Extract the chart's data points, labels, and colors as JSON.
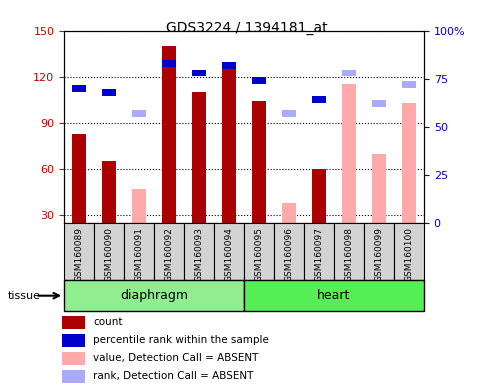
{
  "title": "GDS3224 / 1394181_at",
  "samples": [
    "GSM160089",
    "GSM160090",
    "GSM160091",
    "GSM160092",
    "GSM160093",
    "GSM160094",
    "GSM160095",
    "GSM160096",
    "GSM160097",
    "GSM160098",
    "GSM160099",
    "GSM160100"
  ],
  "tissue_groups": [
    {
      "label": "diaphragm",
      "start": 0,
      "end": 6
    },
    {
      "label": "heart",
      "start": 6,
      "end": 12
    }
  ],
  "count_values": {
    "GSM160089": 83,
    "GSM160090": 65,
    "GSM160091": null,
    "GSM160092": 140,
    "GSM160093": 110,
    "GSM160094": 128,
    "GSM160095": 104,
    "GSM160096": null,
    "GSM160097": 60,
    "GSM160098": null,
    "GSM160099": null,
    "GSM160100": null
  },
  "rank_values": {
    "GSM160089": 70,
    "GSM160090": 68,
    "GSM160091": null,
    "GSM160092": 83,
    "GSM160093": 78,
    "GSM160094": 82,
    "GSM160095": 74,
    "GSM160096": null,
    "GSM160097": 64,
    "GSM160098": null,
    "GSM160099": null,
    "GSM160100": null
  },
  "absent_value_values": {
    "GSM160091": 47,
    "GSM160096": 38,
    "GSM160098": 115,
    "GSM160099": 70,
    "GSM160100": 103
  },
  "absent_rank_values": {
    "GSM160091": 57,
    "GSM160096": 57,
    "GSM160098": 78,
    "GSM160099": 62,
    "GSM160100": 72
  },
  "ylim_left": [
    25,
    150
  ],
  "yticks_left": [
    30,
    60,
    90,
    120,
    150
  ],
  "ylim_right": [
    0,
    100
  ],
  "yticks_right": [
    0,
    25,
    50,
    75,
    100
  ],
  "color_count": "#aa0000",
  "color_rank": "#0000cc",
  "color_absent_value": "#ffaaaa",
  "color_absent_rank": "#aaaaff",
  "tick_label_color_left": "#cc0000",
  "tick_label_color_right": "#0000cc",
  "tissue_colors": [
    "#90ee90",
    "#55ee55"
  ],
  "legend_items": [
    [
      "#aa0000",
      "count"
    ],
    [
      "#0000cc",
      "percentile rank within the sample"
    ],
    [
      "#ffaaaa",
      "value, Detection Call = ABSENT"
    ],
    [
      "#aaaaff",
      "rank, Detection Call = ABSENT"
    ]
  ]
}
